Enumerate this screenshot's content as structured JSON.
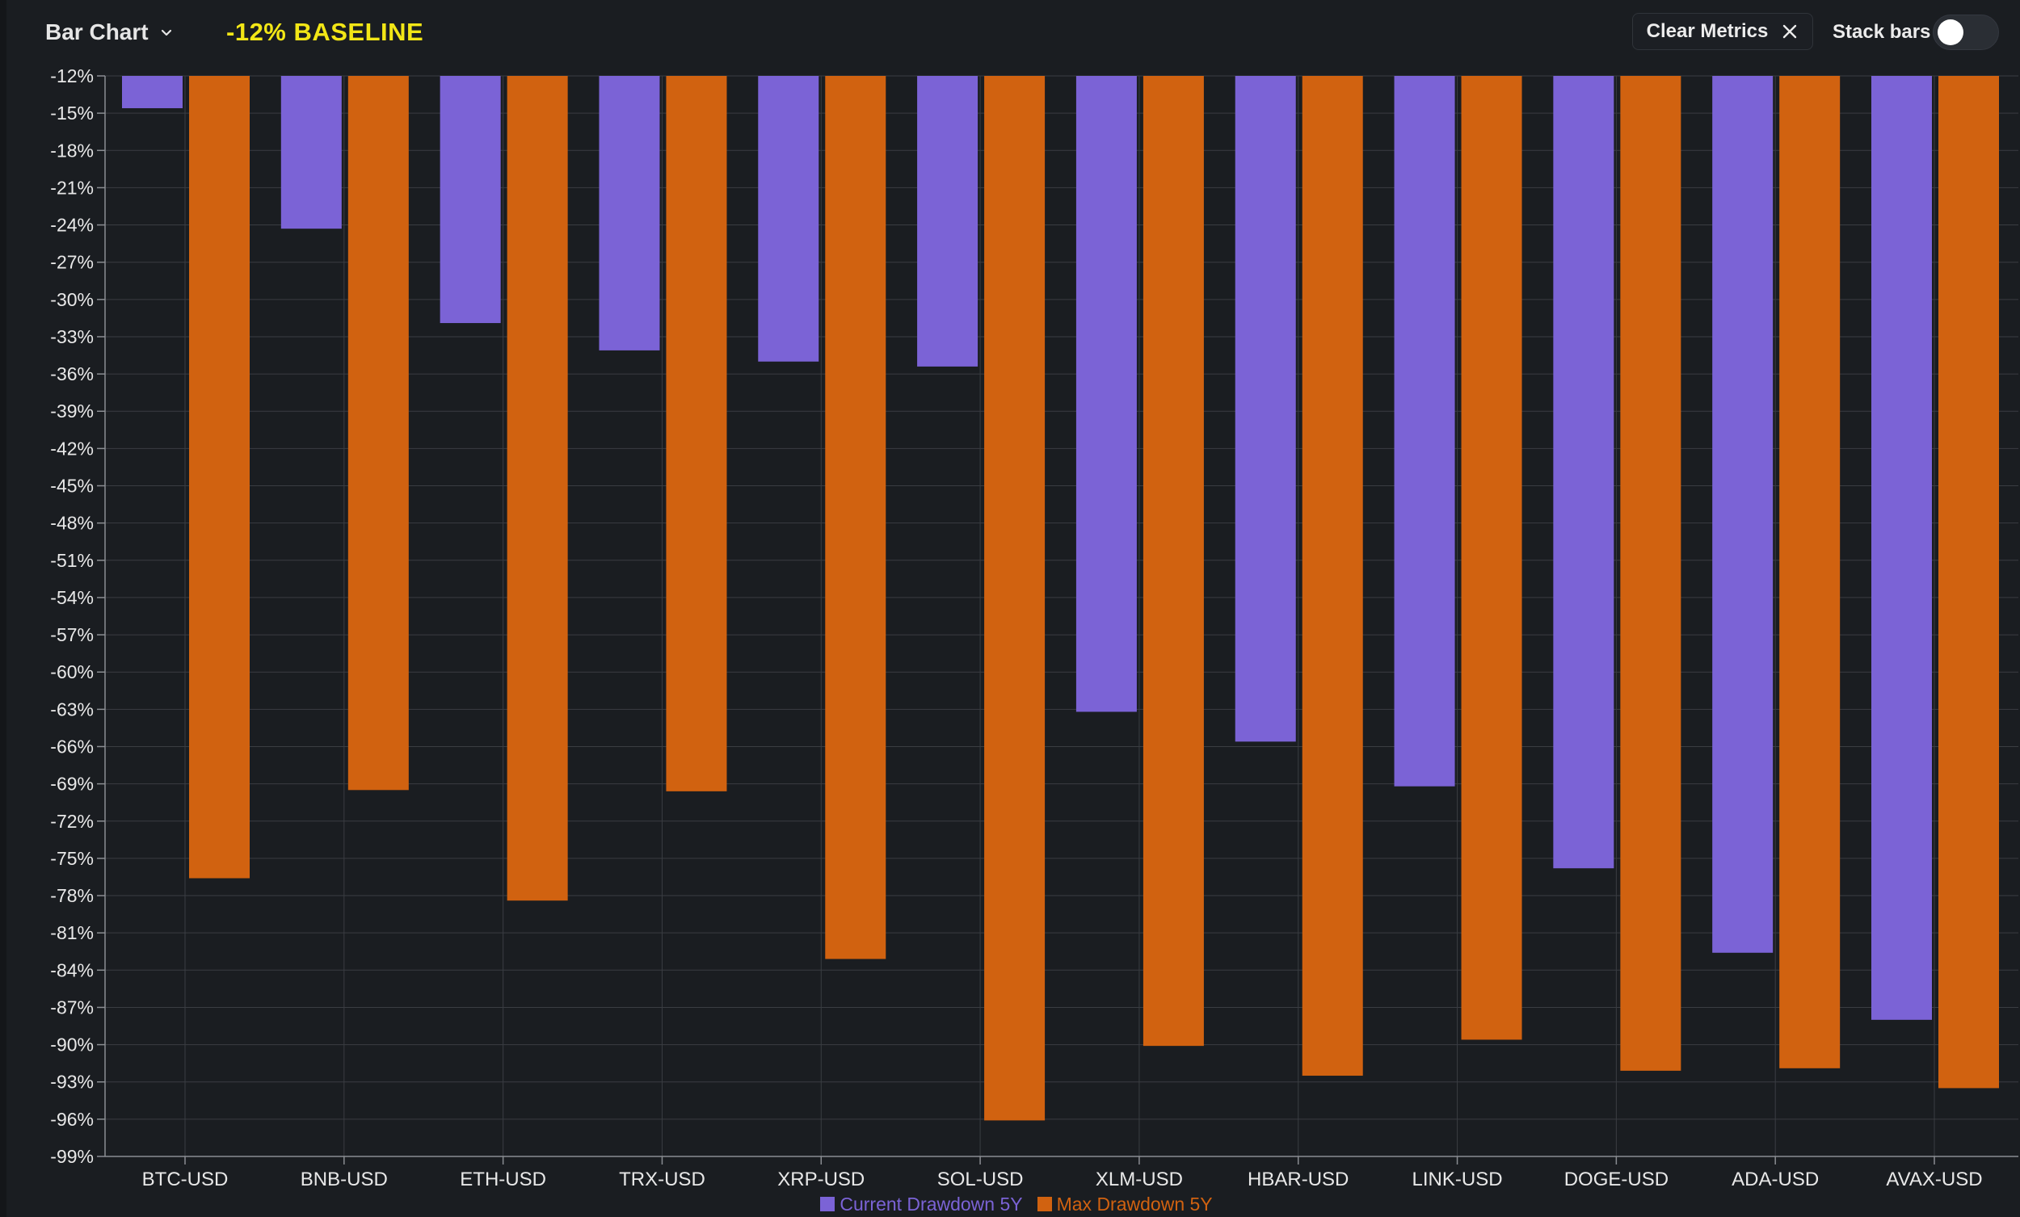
{
  "header": {
    "title": "Bar Chart",
    "baseline_label": "-12% BASELINE",
    "clear_label": "Clear Metrics",
    "stack_label": "Stack bars",
    "stack_enabled": false
  },
  "icons": {
    "dropdown": "chevron-down-icon",
    "clear": "close-icon"
  },
  "colors": {
    "background": "#1a1d21",
    "grid": "#3a3d42",
    "axis_text": "#e8e8e8",
    "baseline_text": "#f2e616",
    "series_current": "#7b63d6",
    "series_max": "#d16210"
  },
  "chart_data": {
    "type": "bar",
    "categories": [
      "BTC-USD",
      "BNB-USD",
      "ETH-USD",
      "TRX-USD",
      "XRP-USD",
      "SOL-USD",
      "XLM-USD",
      "HBAR-USD",
      "LINK-USD",
      "DOGE-USD",
      "ADA-USD",
      "AVAX-USD"
    ],
    "series": [
      {
        "name": "Current Drawdown 5Y",
        "color": "#7b63d6",
        "values": [
          -14.6,
          -24.3,
          -31.9,
          -34.1,
          -35.0,
          -35.4,
          -63.2,
          -65.6,
          -69.2,
          -75.8,
          -82.6,
          -88.0
        ]
      },
      {
        "name": "Max Drawdown 5Y",
        "color": "#d16210",
        "values": [
          -76.6,
          -69.5,
          -78.4,
          -69.6,
          -83.1,
          -96.1,
          -90.1,
          -92.5,
          -89.6,
          -92.1,
          -91.9,
          -93.5
        ]
      }
    ],
    "baseline": -12,
    "ylim": [
      -99,
      -12
    ],
    "yticks": [
      -12,
      -15,
      -18,
      -21,
      -24,
      -27,
      -30,
      -33,
      -36,
      -39,
      -42,
      -45,
      -48,
      -51,
      -54,
      -57,
      -60,
      -63,
      -66,
      -69,
      -72,
      -75,
      -78,
      -81,
      -84,
      -87,
      -90,
      -93,
      -96,
      -99
    ],
    "ytick_labels": [
      "-12%",
      "-15%",
      "-18%",
      "-21%",
      "-24%",
      "-27%",
      "-30%",
      "-33%",
      "-36%",
      "-39%",
      "-42%",
      "-45%",
      "-48%",
      "-51%",
      "-54%",
      "-57%",
      "-60%",
      "-63%",
      "-66%",
      "-69%",
      "-72%",
      "-75%",
      "-78%",
      "-81%",
      "-84%",
      "-87%",
      "-90%",
      "-93%",
      "-96%",
      "-99%"
    ],
    "grid": true,
    "legend_position": "bottom-center",
    "stacked": false
  }
}
